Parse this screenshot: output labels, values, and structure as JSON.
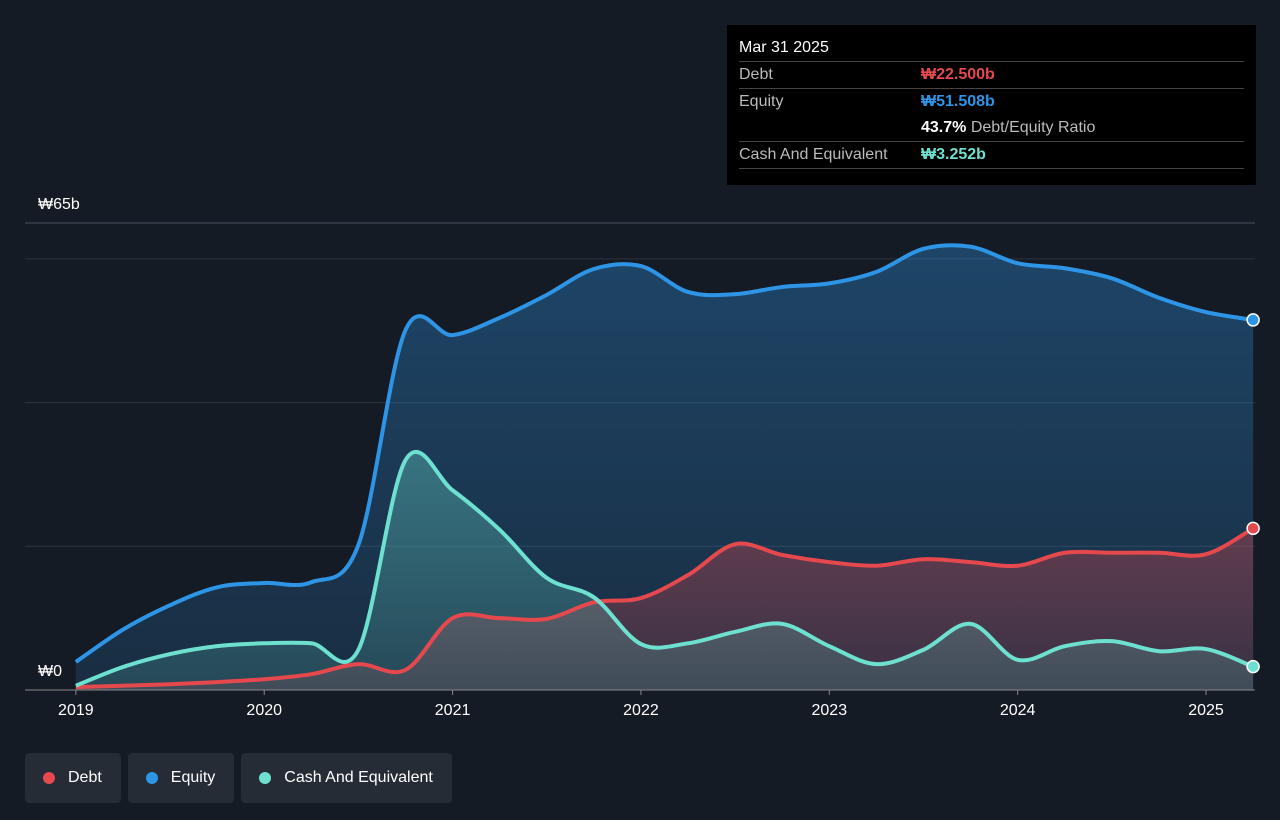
{
  "chart_data": {
    "type": "area",
    "x": [
      2019,
      2019.25,
      2019.5,
      2019.75,
      2020,
      2020.25,
      2020.5,
      2020.75,
      2021,
      2021.25,
      2021.5,
      2021.75,
      2022,
      2022.25,
      2022.5,
      2022.75,
      2023,
      2023.25,
      2023.5,
      2023.75,
      2024,
      2024.25,
      2024.5,
      2024.75,
      2025,
      2025.25
    ],
    "series": [
      {
        "name": "Debt",
        "color": "#e5484d",
        "values": [
          0.4,
          0.6,
          0.8,
          1.1,
          1.5,
          2.2,
          3.6,
          2.8,
          10.0,
          10.0,
          9.9,
          12.2,
          12.8,
          16.0,
          20.3,
          18.8,
          17.8,
          17.3,
          18.2,
          17.8,
          17.3,
          19.1,
          19.1,
          19.1,
          18.9,
          22.5
        ]
      },
      {
        "name": "Equity",
        "color": "#2e94e6",
        "values": [
          3.9,
          8.4,
          11.8,
          14.3,
          14.9,
          15.0,
          20.2,
          50.1,
          49.4,
          51.8,
          55.0,
          58.6,
          59.0,
          55.4,
          55.1,
          56.1,
          56.6,
          58.2,
          61.4,
          61.7,
          59.4,
          58.7,
          57.3,
          54.6,
          52.6,
          51.508
        ]
      },
      {
        "name": "Cash And Equivalent",
        "color": "#6de0d0",
        "values": [
          0.6,
          3.2,
          5.0,
          6.1,
          6.5,
          6.5,
          5.6,
          32.0,
          27.8,
          22.3,
          15.6,
          12.9,
          6.4,
          6.5,
          8.1,
          9.2,
          6.1,
          3.6,
          5.6,
          9.2,
          4.2,
          6.1,
          6.8,
          5.4,
          5.7,
          3.252
        ]
      }
    ],
    "xlim": [
      2018.73,
      2025.26
    ],
    "xticks": [
      2019,
      2020,
      2021,
      2022,
      2023,
      2024,
      2025
    ],
    "ylim": [
      0,
      65
    ],
    "yticks": [
      {
        "value": 0,
        "label": "₩0"
      },
      {
        "value": 65,
        "label": "₩65b"
      }
    ],
    "gridlines": [
      20,
      40,
      60
    ],
    "tooltip": {
      "date": "Mar 31 2025",
      "debt_label": "Debt",
      "debt_value": "₩22.500b",
      "equity_label": "Equity",
      "equity_value": "₩51.508b",
      "ratio_value": "43.7%",
      "ratio_label": "Debt/Equity Ratio",
      "cash_label": "Cash And Equivalent",
      "cash_value": "₩3.252b"
    }
  }
}
